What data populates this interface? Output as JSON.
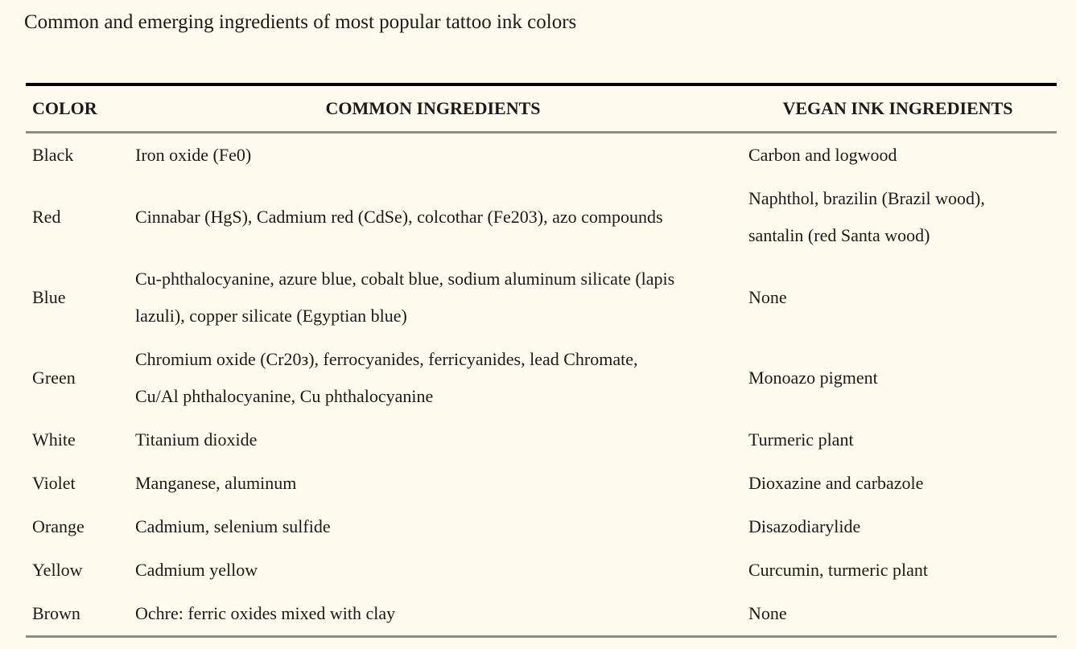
{
  "page": {
    "title": "Common and emerging ingredients of most popular tattoo ink colors",
    "background_color": "#fffbee",
    "text_color": "#1a1a1a",
    "rule_black_color": "#000000",
    "rule_gray_color": "#8d8d88"
  },
  "table": {
    "columns": [
      {
        "key": "color",
        "label": "COLOR"
      },
      {
        "key": "common",
        "label": "COMMON INGREDIENTS"
      },
      {
        "key": "vegan",
        "label": "VEGAN INK INGREDIENTS"
      }
    ],
    "rows": [
      {
        "color": "Black",
        "common": "Iron oxide (Fe0)",
        "vegan": "Carbon and logwood"
      },
      {
        "color": "Red",
        "common": "Cinnabar (HgS), Cadmium red (CdSe), colcothar (Fe203), azo compounds",
        "vegan": "Naphthol, brazilin (Brazil wood), santalin (red Santa wood)"
      },
      {
        "color": "Blue",
        "common": "Cu-phthalocyanine, azure blue, cobalt blue, sodium aluminum silicate (lapis lazuli), copper silicate (Egyptian blue)",
        "vegan": "None"
      },
      {
        "color": "Green",
        "common": "Chromium oxide (Cr20з), ferrocyanides, ferricyanides, lead Chromate, Cu/Al phthalocyanine, Cu phthalocyanine",
        "vegan": "Monoazo pigment"
      },
      {
        "color": "White",
        "common": "Titanium dioxide",
        "vegan": "Turmeric plant"
      },
      {
        "color": "Violet",
        "common": "Manganese, aluminum",
        "vegan": "Dioxazine and carbazole"
      },
      {
        "color": "Orange",
        "common": "Cadmium, selenium sulfide",
        "vegan": "Disazodiarylide"
      },
      {
        "color": "Yellow",
        "common": "Cadmium yellow",
        "vegan": "Curcumin, turmeric plant"
      },
      {
        "color": "Brown",
        "common": "Ochre: ferric oxides mixed with clay",
        "vegan": "None"
      }
    ]
  }
}
